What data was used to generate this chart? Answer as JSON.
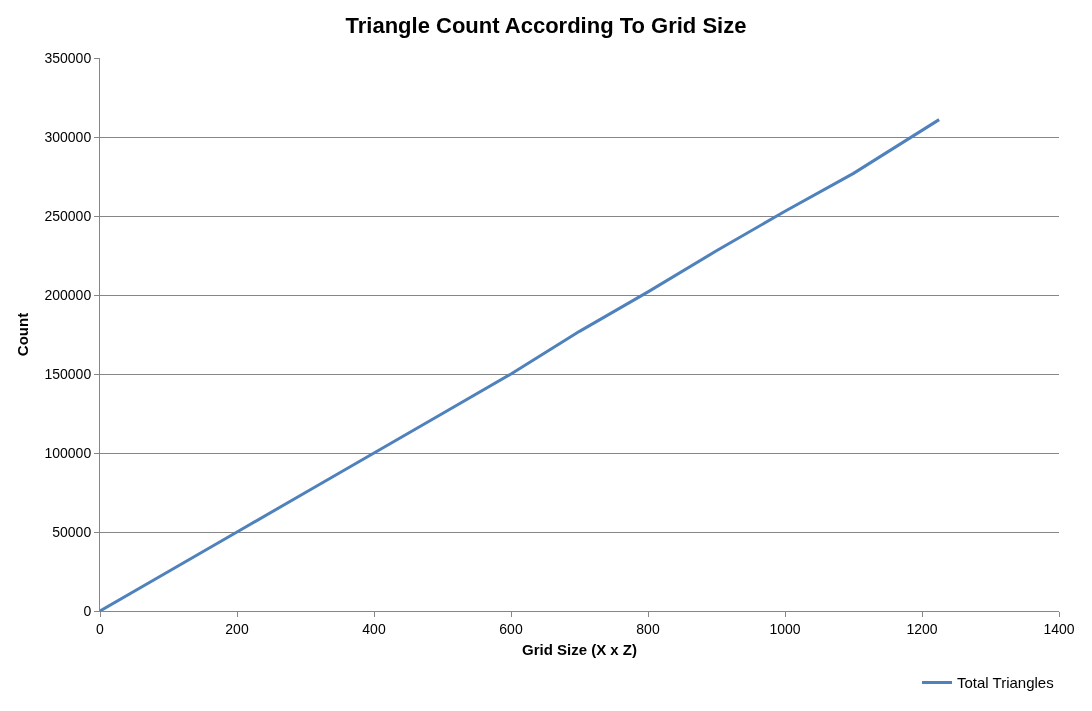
{
  "chart_data": {
    "type": "line",
    "title": "Triangle Count According To Grid Size",
    "xlabel": "Grid Size (X x Z)",
    "ylabel": "Count",
    "x": [
      0,
      100,
      200,
      300,
      400,
      500,
      600,
      700,
      800,
      900,
      1000,
      1100,
      1225
    ],
    "series": [
      {
        "name": "Total Triangles",
        "color": "#4f81bd",
        "values": [
          0,
          25000,
          50000,
          75000,
          100000,
          125000,
          150000,
          177000,
          202000,
          228000,
          253000,
          277000,
          311000
        ]
      }
    ],
    "xlim": [
      0,
      1400
    ],
    "xticks": [
      0,
      200,
      400,
      600,
      800,
      1000,
      1200,
      1400
    ],
    "ylim": [
      0,
      350000
    ],
    "yticks": [
      0,
      50000,
      100000,
      150000,
      200000,
      250000,
      300000,
      350000
    ],
    "grid": "y",
    "legend": "bottom right",
    "marker": "none",
    "line_style": "solid"
  }
}
